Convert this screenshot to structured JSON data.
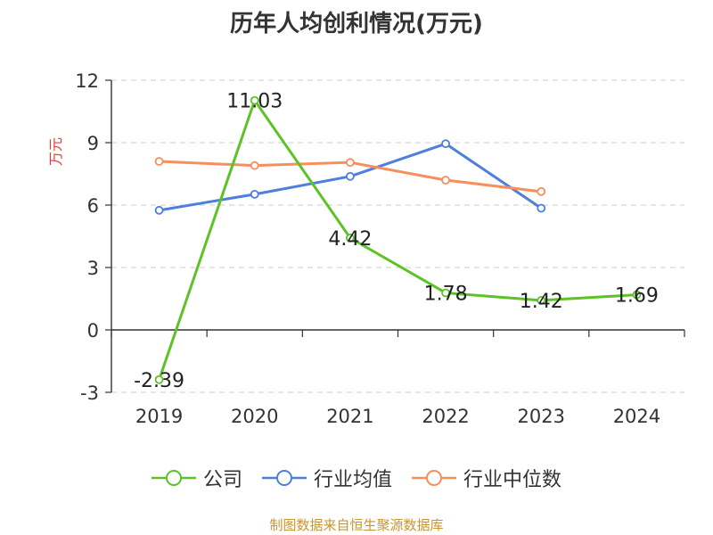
{
  "chart_data": {
    "type": "line",
    "title": "历年人均创利情况(万元)",
    "ylabel": "万元",
    "x": [
      "2019",
      "2020",
      "2021",
      "2022",
      "2023",
      "2024"
    ],
    "ylim": [
      -3,
      12
    ],
    "yticks": [
      -3,
      0,
      3,
      6,
      9,
      12
    ],
    "grid": true,
    "legend_position": "bottom",
    "series": [
      {
        "name": "公司",
        "color": "#5cc226",
        "values": [
          -2.39,
          11.03,
          4.42,
          1.78,
          1.42,
          1.69
        ],
        "labels": [
          "-2.39",
          "11.03",
          "4.42",
          "1.78",
          "1.42",
          "1.69"
        ]
      },
      {
        "name": "行业均值",
        "color": "#4f7fdc",
        "values": [
          5.75,
          6.52,
          7.38,
          8.95,
          5.85,
          null
        ]
      },
      {
        "name": "行业中位数",
        "color": "#f58f5c",
        "values": [
          8.1,
          7.9,
          8.05,
          7.2,
          6.65,
          null
        ]
      }
    ]
  },
  "source_note": "制图数据来自恒生聚源数据库",
  "colors": {
    "axis": "#333333",
    "grid": "#cccccc",
    "ylabel": "#e03a3a",
    "source": "#c8952e"
  }
}
